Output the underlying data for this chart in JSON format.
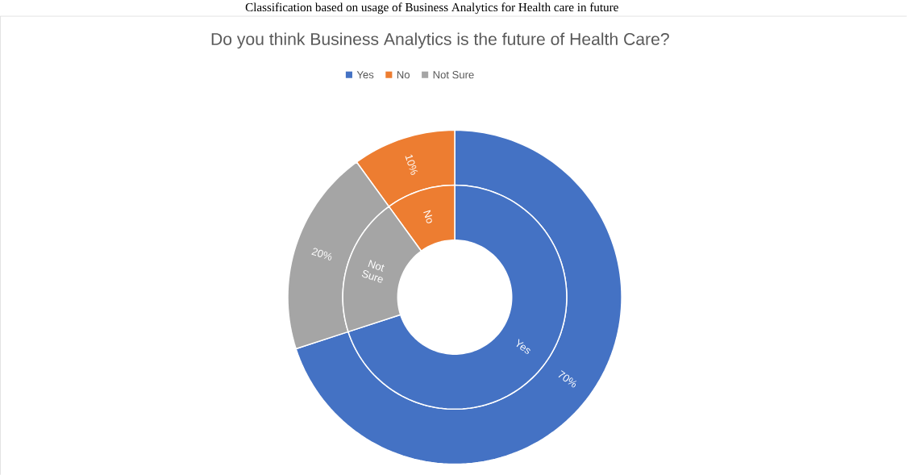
{
  "chart_data": {
    "type": "donut",
    "title": "Do you think Business Analytics is the future of Health Care?",
    "annotations": [
      "Classification based on usage of Business Analytics for Health care in future"
    ],
    "categories": [
      "Yes",
      "No",
      "Not Sure"
    ],
    "colors": [
      "#4472c4",
      "#ed7d31",
      "#a5a5a5"
    ],
    "legend": "top",
    "series": [
      {
        "values": [
          70,
          10,
          20
        ],
        "value_labels": [
          "70%",
          "10%",
          "20%"
        ]
      },
      {
        "values": [
          70,
          10,
          20
        ],
        "value_labels": [
          "Yes",
          "No",
          "Not Sure"
        ]
      }
    ]
  }
}
